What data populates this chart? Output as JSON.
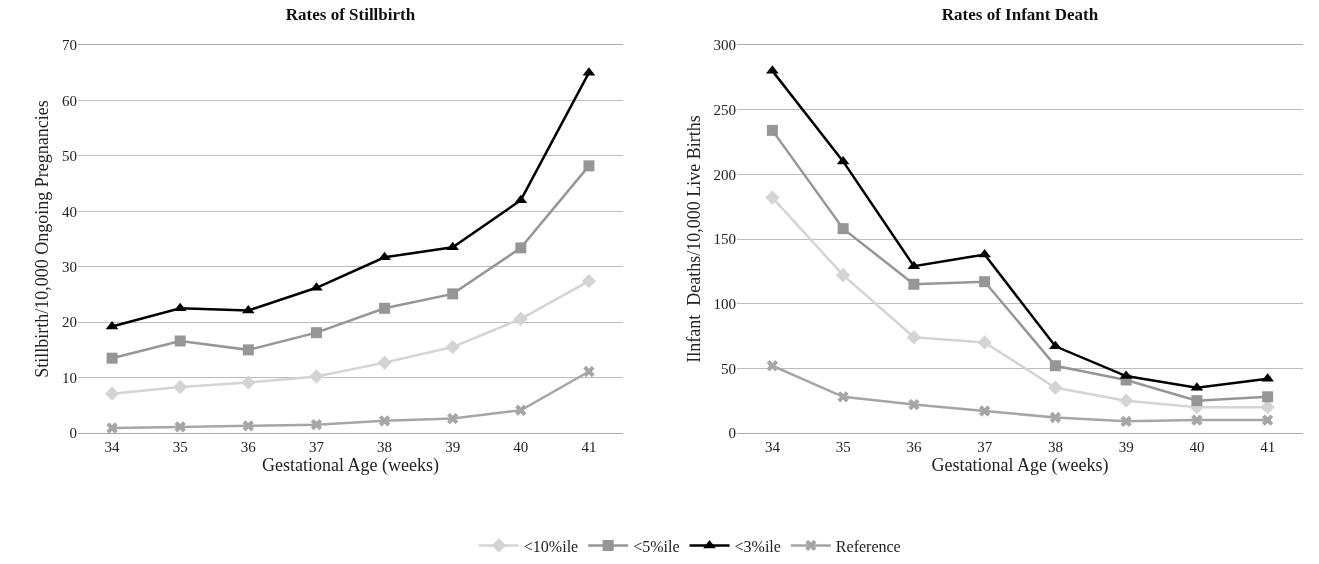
{
  "chart_data": [
    {
      "type": "line",
      "title": "Rates of Stillbirth",
      "xlabel": "Gestational Age (weeks)",
      "ylabel": "Stillbirth/10,000 Ongoing Pregnancies",
      "categories": [
        "34",
        "35",
        "36",
        "37",
        "38",
        "39",
        "40",
        "41"
      ],
      "ylim": [
        0,
        70
      ],
      "yticks": [
        0,
        10,
        20,
        30,
        40,
        50,
        60,
        70
      ],
      "grid": "y",
      "legend": "bottom",
      "series": [
        {
          "name": "<10%ile",
          "color": "#d4d4d4",
          "marker": "diamond",
          "values": [
            7.1,
            8.3,
            9.1,
            10.2,
            12.7,
            15.5,
            20.6,
            27.4
          ]
        },
        {
          "name": "<5%ile",
          "color": "#969696",
          "marker": "square",
          "values": [
            13.5,
            16.6,
            15,
            18.1,
            22.5,
            25.1,
            33.4,
            48.2
          ]
        },
        {
          "name": "<3%ile",
          "color": "#000000",
          "marker": "triangle",
          "values": [
            19.2,
            22.5,
            22.1,
            26.2,
            31.7,
            33.5,
            42,
            65
          ]
        },
        {
          "name": "Reference",
          "color": "#a6a6a6",
          "marker": "cross",
          "values": [
            0.9,
            1.1,
            1.3,
            1.5,
            2.2,
            2.6,
            4.1,
            11.1
          ]
        }
      ]
    },
    {
      "type": "line",
      "title": "Rates of Infant Death",
      "xlabel": "Gestational Age (weeks)",
      "ylabel": "Ilnfant  Deaths/10,000 Live Births",
      "categories": [
        "34",
        "35",
        "36",
        "37",
        "38",
        "39",
        "40",
        "41"
      ],
      "ylim": [
        0,
        300
      ],
      "yticks": [
        0,
        50,
        100,
        150,
        200,
        250,
        300
      ],
      "grid": "y",
      "legend": false,
      "series": [
        {
          "color": "#d4d4d4",
          "marker": "diamond",
          "values": [
            182,
            122,
            74,
            70,
            35,
            25,
            20,
            20
          ]
        },
        {
          "color": "#969696",
          "marker": "square",
          "values": [
            234,
            158,
            115,
            117,
            52,
            41,
            25,
            28
          ]
        },
        {
          "color": "#000000",
          "marker": "triangle",
          "values": [
            280,
            210,
            129,
            138,
            67,
            44,
            35,
            42
          ]
        },
        {
          "color": "#a6a6a6",
          "marker": "cross",
          "values": [
            52,
            28,
            22,
            17,
            12,
            9,
            10,
            10
          ]
        }
      ]
    }
  ]
}
